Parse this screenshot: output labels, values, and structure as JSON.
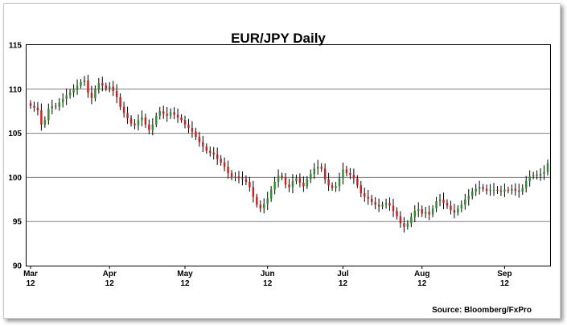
{
  "chart_data": {
    "type": "candlestick",
    "title": "EUR/JPY Daily",
    "source": "Source: Bloomberg/FxPro",
    "ylim": [
      90,
      115
    ],
    "yticks": [
      "90",
      "95",
      "100",
      "105",
      "110",
      "115"
    ],
    "xticks": [
      {
        "month": "Mar",
        "day": "12",
        "index": 0
      },
      {
        "month": "Apr",
        "day": "12",
        "index": 22
      },
      {
        "month": "May",
        "day": "12",
        "index": 43
      },
      {
        "month": "Jun",
        "day": "12",
        "index": 66
      },
      {
        "month": "Jul",
        "day": "12",
        "index": 87
      },
      {
        "month": "Aug",
        "day": "12",
        "index": 109
      },
      {
        "month": "Sep",
        "day": "12",
        "index": 132
      }
    ],
    "grid": true,
    "colors": {
      "up": "#2e8b2e",
      "down": "#cc1f1f",
      "grid": "#7f7f7f"
    },
    "closes": [
      108.1,
      107.9,
      107.6,
      106.0,
      106.5,
      107.8,
      108.1,
      108.0,
      108.5,
      108.9,
      109.3,
      109.6,
      110.0,
      110.4,
      110.8,
      111.0,
      109.6,
      109.0,
      110.0,
      110.7,
      110.4,
      110.1,
      110.3,
      109.8,
      109.1,
      108.0,
      107.3,
      106.7,
      106.1,
      105.9,
      106.5,
      106.8,
      106.0,
      105.4,
      106.0,
      107.0,
      107.5,
      107.2,
      107.0,
      107.4,
      107.1,
      106.8,
      106.5,
      106.0,
      105.6,
      105.2,
      104.6,
      104.0,
      103.5,
      103.0,
      102.8,
      102.6,
      102.1,
      101.7,
      101.2,
      100.5,
      100.0,
      100.1,
      99.9,
      99.8,
      99.5,
      98.9,
      97.8,
      96.9,
      96.5,
      97.0,
      97.6,
      98.6,
      99.5,
      100.2,
      100.0,
      99.2,
      98.9,
      99.6,
      99.9,
      99.4,
      99.0,
      99.8,
      100.4,
      101.0,
      101.2,
      101.0,
      99.8,
      99.1,
      98.8,
      99.0,
      99.9,
      100.9,
      100.5,
      100.3,
      99.9,
      99.1,
      98.2,
      97.8,
      97.6,
      97.2,
      96.9,
      96.7,
      96.9,
      97.1,
      96.8,
      96.2,
      95.6,
      94.8,
      94.4,
      94.8,
      95.5,
      96.2,
      96.4,
      95.9,
      96.1,
      95.8,
      96.5,
      97.3,
      97.5,
      97.1,
      96.8,
      96.3,
      96.0,
      96.5,
      96.9,
      97.5,
      97.9,
      98.4,
      98.7,
      98.9,
      98.7,
      98.5,
      98.6,
      98.6,
      98.5,
      98.4,
      98.6,
      98.5,
      98.7,
      98.5,
      98.4,
      98.8,
      99.6,
      100.1,
      100.3,
      100.2,
      100.4,
      100.6,
      101.6
    ]
  }
}
